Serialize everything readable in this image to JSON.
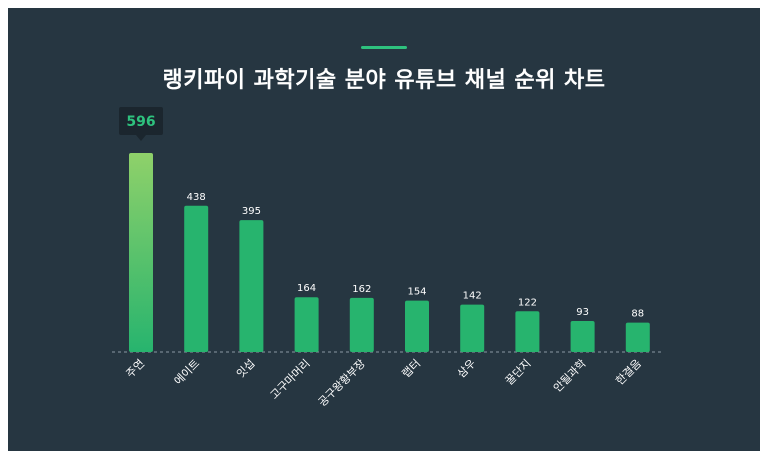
{
  "chart_data": {
    "type": "bar",
    "title": "랭키파이 과학기술 분야 유튜브 채널 순위 차트",
    "categories": [
      "주연",
      "에이트",
      "잇섭",
      "고구마머리",
      "공구왕황부장",
      "랩터",
      "삼우",
      "꿀단지",
      "안될과학",
      "한결음"
    ],
    "values": [
      596,
      438,
      395,
      164,
      162,
      154,
      142,
      122,
      93,
      88
    ],
    "highlight_index": 0,
    "xlabel": "",
    "ylabel": "",
    "ylim": [
      0,
      596
    ],
    "grid": false,
    "legend": "none"
  },
  "colors": {
    "background": "#263641",
    "bar": "#27b46e",
    "bar_top_highlight": "#8fd16a",
    "tooltip_bg": "#1b262e",
    "tooltip_text": "#2ec27e",
    "label": "#ffffff"
  }
}
